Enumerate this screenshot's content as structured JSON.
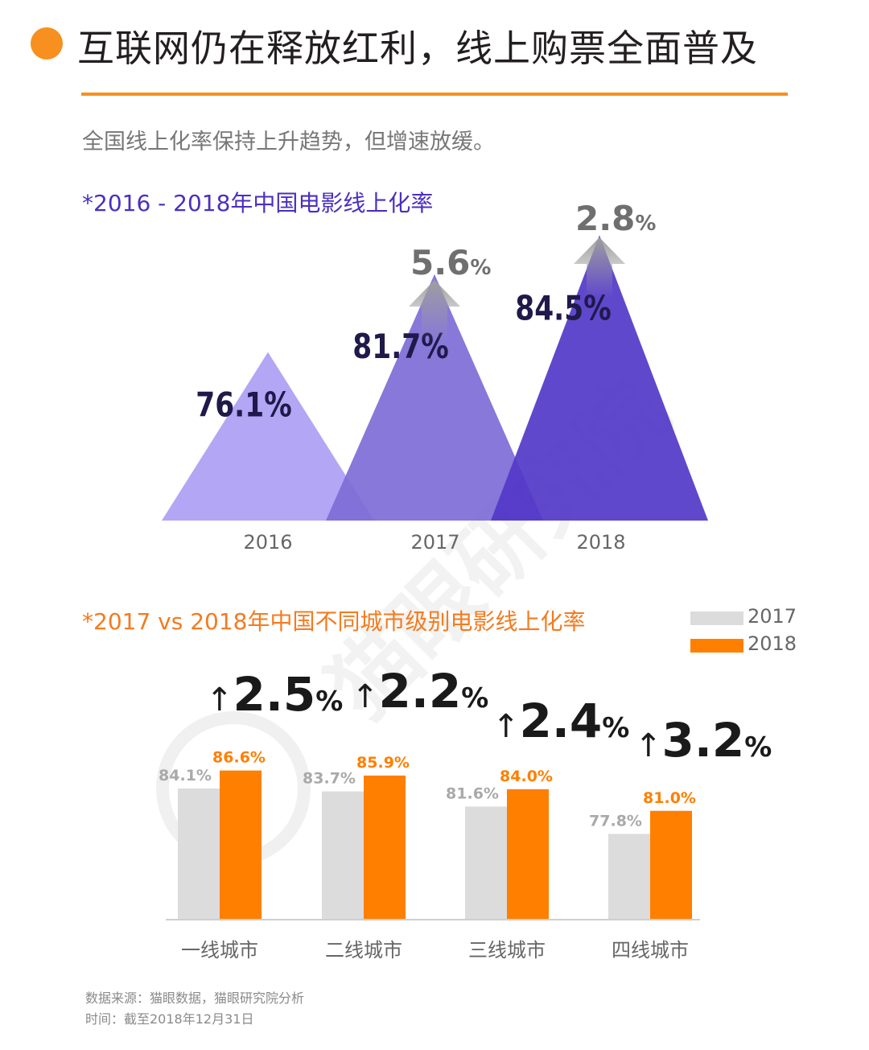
{
  "header": {
    "title": "互联网仍在释放红利，线上购票全面普及",
    "subtitle": "全国线上化率保持上升趋势，但增速放缓。"
  },
  "watermark": "猫眼研究院",
  "colors": {
    "accent": "#f7901e",
    "purple_light": "#b3a6f5",
    "purple_mid": "#7d6dd6",
    "purple_dark": "#5338c8",
    "value_text": "#1f1a4a",
    "bar_2017": "#dcdcdc",
    "bar_2018": "#ff7f00"
  },
  "chart_data": [
    {
      "type": "area",
      "title": "*2016 - 2018年中国电影线上化率",
      "categories": [
        "2016",
        "2017",
        "2018"
      ],
      "values": [
        76.1,
        81.7,
        84.5
      ],
      "value_labels": [
        "76.1%",
        "81.7%",
        "84.5%"
      ],
      "increase_labels": [
        {
          "number": "5.6",
          "unit": "%"
        },
        {
          "number": "2.8",
          "unit": "%"
        }
      ],
      "increases": [
        5.6,
        2.8
      ]
    },
    {
      "type": "bar",
      "title": "*2017 vs 2018年中国不同城市级别电影线上化率",
      "categories": [
        "一线城市",
        "二线城市",
        "三线城市",
        "四线城市"
      ],
      "series": [
        {
          "name": "2017",
          "values": [
            84.1,
            83.7,
            81.6,
            77.8
          ],
          "labels": [
            "84.1%",
            "83.7%",
            "81.6%",
            "77.8%"
          ]
        },
        {
          "name": "2018",
          "values": [
            86.6,
            85.9,
            84.0,
            81.0
          ],
          "labels": [
            "86.6%",
            "85.9%",
            "84.0%",
            "81.0%"
          ]
        }
      ],
      "growth": [
        {
          "arrow": "↑",
          "number": "2.5",
          "unit": "%"
        },
        {
          "arrow": "↑",
          "number": "2.2",
          "unit": "%"
        },
        {
          "arrow": "↑",
          "number": "2.4",
          "unit": "%"
        },
        {
          "arrow": "↑",
          "number": "3.2",
          "unit": "%"
        }
      ]
    }
  ],
  "footer": {
    "source": "数据来源：猫眼数据，猫眼研究院分析",
    "date": "时间：截至2018年12月31日"
  }
}
